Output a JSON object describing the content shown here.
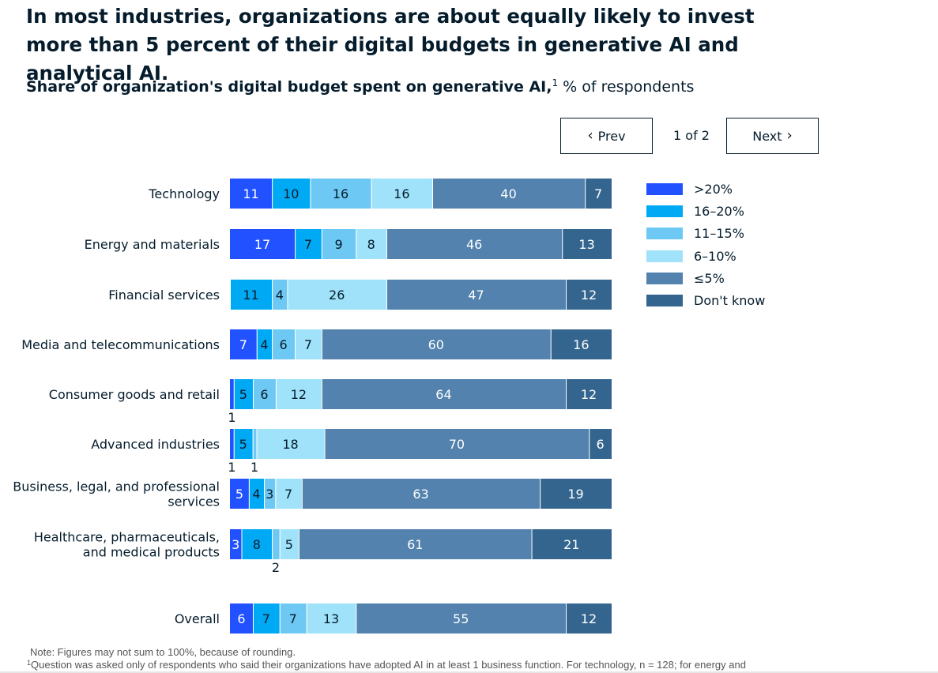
{
  "headline": "In most industries, organizations are about equally likely to invest more than 5 percent of their digital budgets in generative AI and analytical AI.",
  "subtitle": {
    "bold": "Share of organization's digital budget spent on generative AI,",
    "sup": "1",
    "rest": " % of respondents"
  },
  "pager": {
    "prev_label": "Prev",
    "count": "1 of 2",
    "next_label": "Next"
  },
  "colors": {
    "gt20": "#2251ff",
    "c16_20": "#00a9f4",
    "c11_15": "#6ec8f4",
    "c6_10": "#9fe2fa",
    "le5": "#5282ad",
    "dont_know": "#34658f"
  },
  "chart_data": {
    "type": "bar",
    "orientation": "horizontal",
    "stacked": true,
    "categories": [
      "Technology",
      "Energy and materials",
      "Financial services",
      "Media and telecommunications",
      "Consumer goods and retail",
      "Advanced industries",
      "Business, legal, and professional services",
      "Healthcare, pharmaceuticals, and medical products",
      "Overall"
    ],
    "series": [
      {
        "name": ">20%",
        "color_key": "gt20",
        "values": [
          11,
          17,
          0,
          7,
          1,
          1,
          5,
          3,
          6
        ]
      },
      {
        "name": "16–20%",
        "color_key": "c16_20",
        "values": [
          10,
          7,
          11,
          4,
          5,
          5,
          4,
          8,
          7
        ]
      },
      {
        "name": "11–15%",
        "color_key": "c11_15",
        "values": [
          16,
          9,
          4,
          6,
          6,
          1,
          3,
          2,
          7
        ]
      },
      {
        "name": "6–10%",
        "color_key": "c6_10",
        "values": [
          16,
          8,
          26,
          7,
          12,
          18,
          7,
          5,
          13
        ]
      },
      {
        "name": "≤5%",
        "color_key": "le5",
        "values": [
          40,
          46,
          47,
          60,
          64,
          70,
          63,
          61,
          55
        ]
      },
      {
        "name": "Don't know",
        "color_key": "dont_know",
        "values": [
          7,
          13,
          12,
          16,
          12,
          6,
          19,
          21,
          12
        ]
      }
    ],
    "legend_position": "right"
  },
  "note": "Note: Figures may not sum to 100%, because of rounding.",
  "footnote": {
    "sup": "1",
    "text": "Question was asked only of respondents who said their organizations have adopted AI in at least 1 business function. For technology, n = 128; for energy and"
  }
}
